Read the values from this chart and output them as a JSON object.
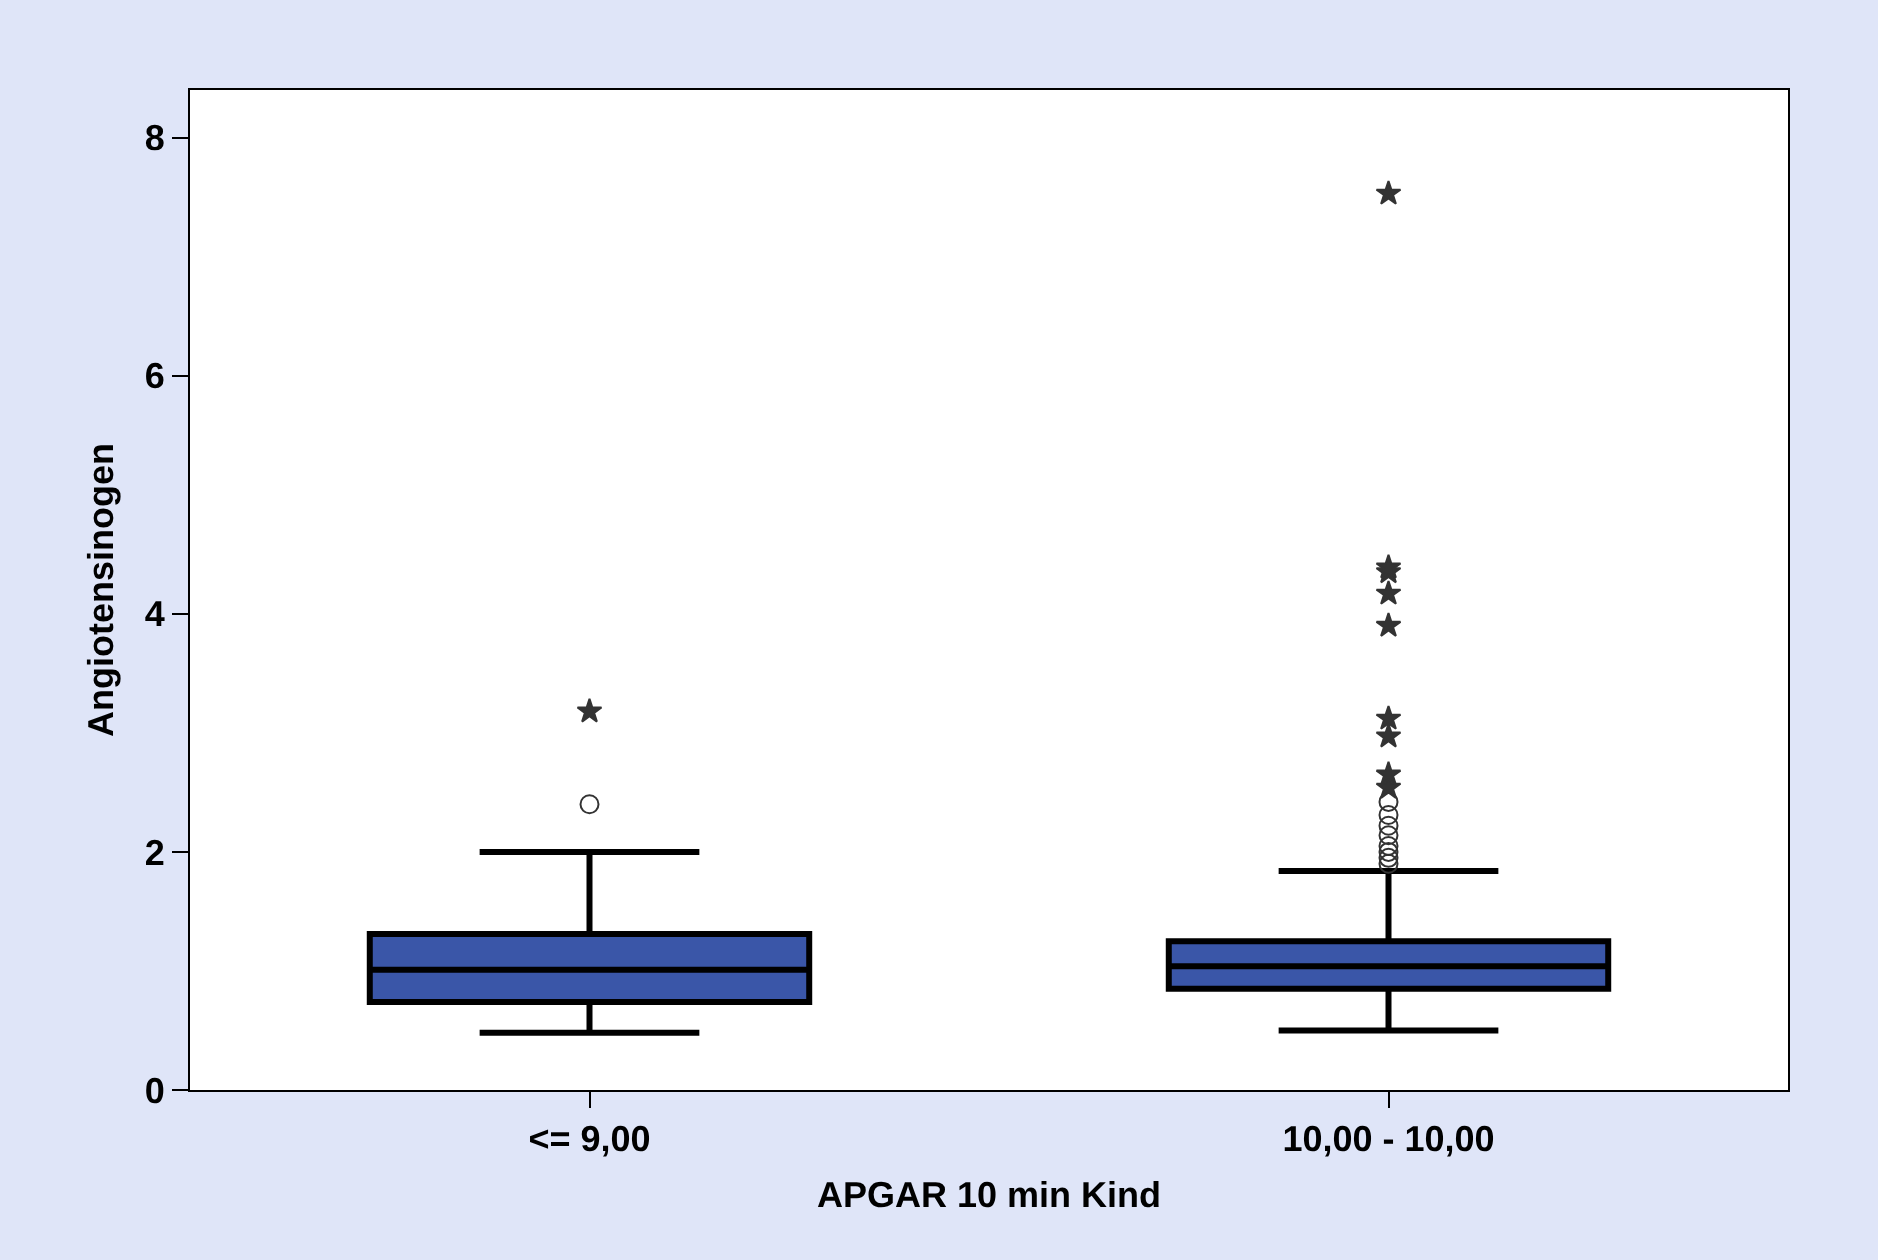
{
  "chart_data": {
    "type": "box",
    "xlabel": "APGAR 10 min Kind",
    "ylabel": "Angiotensinogen",
    "categories": [
      "<= 9,00",
      "10,00 - 10,00"
    ],
    "color": "#3a56a8",
    "boxes": [
      {
        "low": 0.48,
        "q1": 0.74,
        "median": 1.01,
        "q3": 1.31,
        "high": 2.0,
        "outliers": [
          2.4,
          3.18
        ]
      },
      {
        "low": 0.5,
        "q1": 0.85,
        "median": 1.04,
        "q3": 1.25,
        "high": 1.84,
        "outliers": [
          1.9,
          1.95,
          2.0,
          2.05,
          2.14,
          2.22,
          2.31,
          2.42,
          2.54,
          2.65,
          2.97,
          3.12,
          3.9,
          4.17,
          4.35,
          4.39,
          7.53
        ]
      }
    ],
    "ylim": [
      0,
      8.4
    ],
    "yticks": [
      0,
      2,
      4,
      6,
      8
    ]
  }
}
